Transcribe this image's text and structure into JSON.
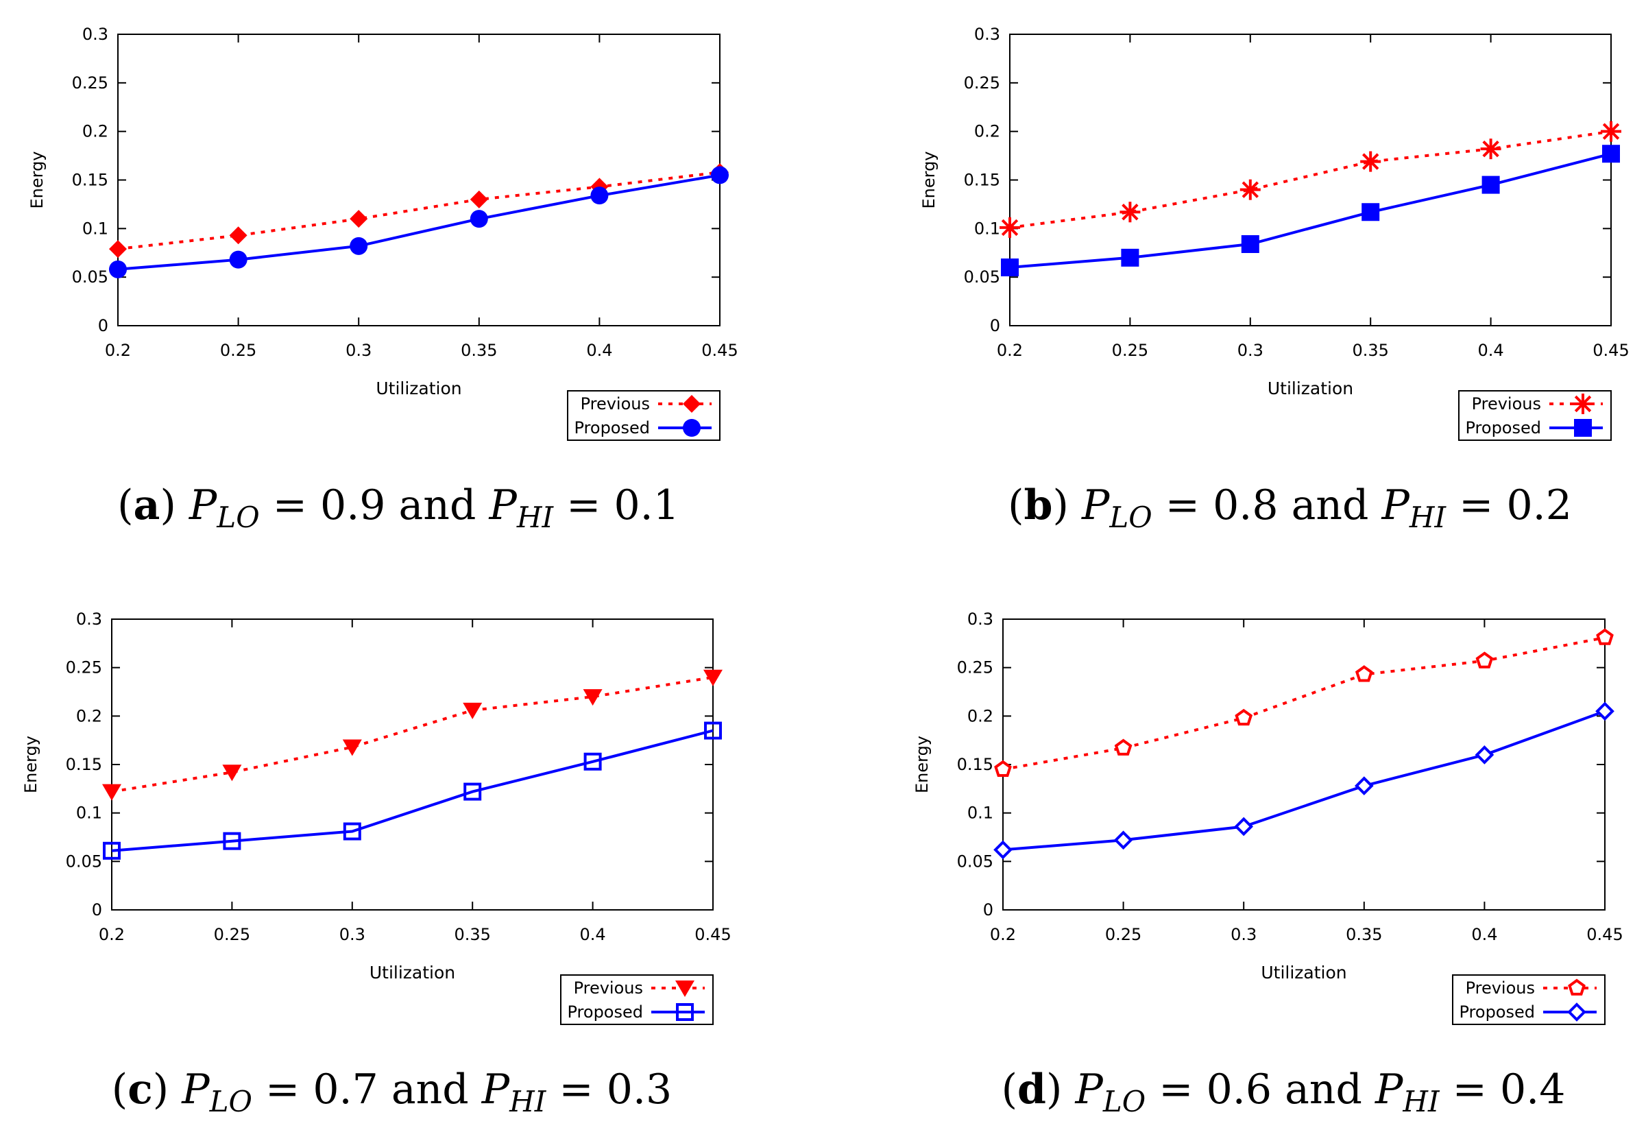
{
  "chart_data": [
    {
      "type": "line",
      "panel": "a",
      "xlabel": "Utilization",
      "ylabel": "Energy",
      "x": [
        0.2,
        0.25,
        0.3,
        0.35,
        0.4,
        0.45
      ],
      "xticks": [
        "0.2",
        "0.25",
        "0.3",
        "0.35",
        "0.4",
        "0.45"
      ],
      "yticks": [
        "0",
        "0.05",
        "0.1",
        "0.15",
        "0.2",
        "0.25",
        "0.3"
      ],
      "ylim": [
        0,
        0.3
      ],
      "legend_position": "bottom-right",
      "series": [
        {
          "name": "Previous",
          "style": "dotted",
          "color": "#ff0000",
          "marker": "diamond-filled",
          "values": [
            0.079,
            0.093,
            0.11,
            0.13,
            0.143,
            0.158
          ]
        },
        {
          "name": "Proposed",
          "style": "solid",
          "color": "#0000ff",
          "marker": "circle-filled",
          "values": [
            0.058,
            0.068,
            0.082,
            0.11,
            0.134,
            0.155
          ]
        }
      ],
      "caption": {
        "label": "a",
        "text_pre": "P",
        "sub1": "LO",
        "mid": " = 0.9 and ",
        "p2": "P",
        "sub2": "HI",
        "post": " = 0.1"
      }
    },
    {
      "type": "line",
      "panel": "b",
      "xlabel": "Utilization",
      "ylabel": "Energy",
      "x": [
        0.2,
        0.25,
        0.3,
        0.35,
        0.4,
        0.45
      ],
      "xticks": [
        "0.2",
        "0.25",
        "0.3",
        "0.35",
        "0.4",
        "0.45"
      ],
      "yticks": [
        "0",
        "0.05",
        "0.1",
        "0.15",
        "0.2",
        "0.25",
        "0.3"
      ],
      "ylim": [
        0,
        0.3
      ],
      "legend_position": "bottom-right",
      "series": [
        {
          "name": "Previous",
          "style": "dotted",
          "color": "#ff0000",
          "marker": "asterisk",
          "values": [
            0.101,
            0.117,
            0.14,
            0.169,
            0.182,
            0.2
          ]
        },
        {
          "name": "Proposed",
          "style": "solid",
          "color": "#0000ff",
          "marker": "square-filled",
          "values": [
            0.06,
            0.07,
            0.084,
            0.117,
            0.145,
            0.177
          ]
        }
      ],
      "caption": {
        "label": "b",
        "text_pre": "P",
        "sub1": "LO",
        "mid": " = 0.8 and ",
        "p2": "P",
        "sub2": "HI",
        "post": " = 0.2"
      }
    },
    {
      "type": "line",
      "panel": "c",
      "xlabel": "Utilization",
      "ylabel": "Energy",
      "x": [
        0.2,
        0.25,
        0.3,
        0.35,
        0.4,
        0.45
      ],
      "xticks": [
        "0.2",
        "0.25",
        "0.3",
        "0.35",
        "0.4",
        "0.45"
      ],
      "yticks": [
        "0",
        "0.05",
        "0.1",
        "0.15",
        "0.2",
        "0.25",
        "0.3"
      ],
      "ylim": [
        0,
        0.3
      ],
      "legend_position": "bottom-right",
      "series": [
        {
          "name": "Previous",
          "style": "dotted",
          "color": "#ff0000",
          "marker": "triangle-down-filled",
          "values": [
            0.122,
            0.142,
            0.168,
            0.206,
            0.22,
            0.24
          ]
        },
        {
          "name": "Proposed",
          "style": "solid",
          "color": "#0000ff",
          "marker": "square-open",
          "values": [
            0.061,
            0.071,
            0.081,
            0.122,
            0.153,
            0.185
          ]
        }
      ],
      "caption": {
        "label": "c",
        "text_pre": "P",
        "sub1": "LO",
        "mid": " = 0.7 and ",
        "p2": "P",
        "sub2": "HI",
        "post": " = 0.3"
      }
    },
    {
      "type": "line",
      "panel": "d",
      "xlabel": "Utilization",
      "ylabel": "Energy",
      "x": [
        0.2,
        0.25,
        0.3,
        0.35,
        0.4,
        0.45
      ],
      "xticks": [
        "0.2",
        "0.25",
        "0.3",
        "0.35",
        "0.4",
        "0.45"
      ],
      "yticks": [
        "0",
        "0.05",
        "0.1",
        "0.15",
        "0.2",
        "0.25",
        "0.3"
      ],
      "ylim": [
        0,
        0.3
      ],
      "legend_position": "bottom-right",
      "series": [
        {
          "name": "Previous",
          "style": "dotted",
          "color": "#ff0000",
          "marker": "pentagon-open",
          "values": [
            0.145,
            0.167,
            0.198,
            0.243,
            0.257,
            0.281
          ]
        },
        {
          "name": "Proposed",
          "style": "solid",
          "color": "#0000ff",
          "marker": "diamond-open",
          "values": [
            0.062,
            0.072,
            0.086,
            0.128,
            0.16,
            0.205
          ]
        }
      ],
      "caption": {
        "label": "d",
        "text_pre": "P",
        "sub1": "LO",
        "mid": " = 0.6 and ",
        "p2": "P",
        "sub2": "HI",
        "post": " = 0.4"
      }
    }
  ]
}
